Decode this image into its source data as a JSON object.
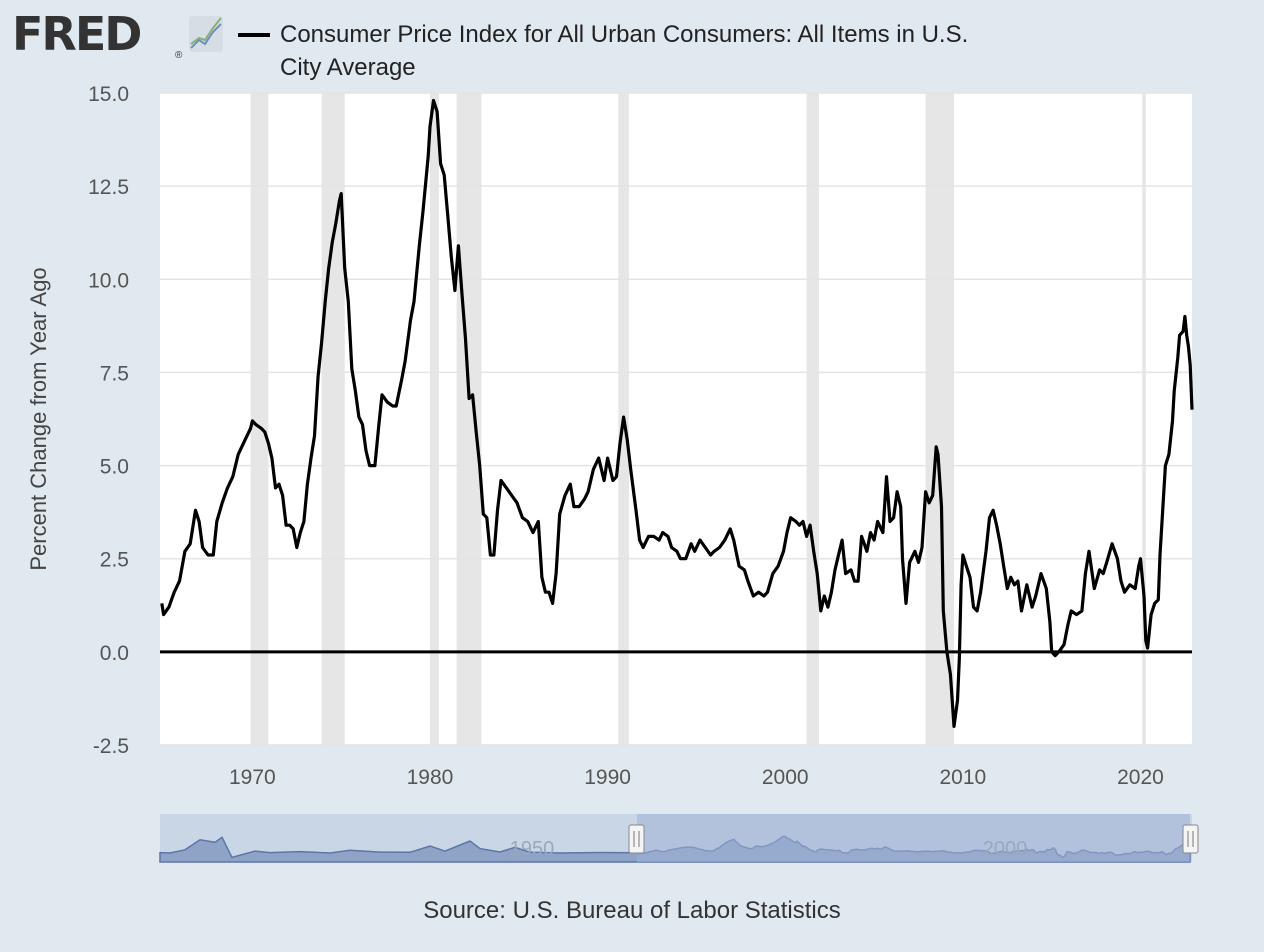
{
  "logo": {
    "text": "FRED",
    "registered": "®"
  },
  "legend": {
    "label": "Consumer Price Index for All Urban Consumers: All Items in U.S. City Average"
  },
  "source": "Source: U.S. Bureau of Labor Statistics",
  "colors": {
    "line": "#000000",
    "recession": "#e6e6e6",
    "navigator": "#8fa3c7",
    "background": "#e1e9f0"
  },
  "navigator": {
    "labels": [
      "1950",
      "2000"
    ]
  },
  "chart_data": {
    "type": "line",
    "title": "",
    "xlabel": "",
    "ylabel": "Percent Change from Year Ago",
    "xlim": [
      1964.8,
      2022.9
    ],
    "ylim": [
      -2.5,
      15.0
    ],
    "yticks": [
      "-2.5",
      "0.0",
      "2.5",
      "5.0",
      "7.5",
      "10.0",
      "12.5",
      "15.0"
    ],
    "xticks": [
      "1970",
      "1980",
      "1990",
      "2000",
      "2010",
      "2020"
    ],
    "grid": true,
    "zero_line": true,
    "recessions": [
      [
        1969.9,
        1970.9
      ],
      [
        1973.9,
        1975.2
      ],
      [
        1980.0,
        1980.5
      ],
      [
        1981.5,
        1982.9
      ],
      [
        1990.6,
        1991.2
      ],
      [
        2001.2,
        2001.9
      ],
      [
        2007.9,
        2009.5
      ],
      [
        2020.1,
        2020.3
      ]
    ],
    "series": [
      {
        "name": "Consumer Price Index for All Urban Consumers: All Items in U.S. City Average",
        "points": [
          [
            1964.9,
            1.3
          ],
          [
            1965.0,
            1.0
          ],
          [
            1965.3,
            1.2
          ],
          [
            1965.6,
            1.6
          ],
          [
            1965.9,
            1.9
          ],
          [
            1966.2,
            2.7
          ],
          [
            1966.5,
            2.9
          ],
          [
            1966.8,
            3.8
          ],
          [
            1967.0,
            3.5
          ],
          [
            1967.2,
            2.8
          ],
          [
            1967.5,
            2.6
          ],
          [
            1967.8,
            2.6
          ],
          [
            1968.0,
            3.5
          ],
          [
            1968.3,
            4.0
          ],
          [
            1968.6,
            4.4
          ],
          [
            1968.9,
            4.7
          ],
          [
            1969.2,
            5.3
          ],
          [
            1969.5,
            5.6
          ],
          [
            1969.9,
            6.0
          ],
          [
            1970.0,
            6.2
          ],
          [
            1970.2,
            6.1
          ],
          [
            1970.5,
            6.0
          ],
          [
            1970.7,
            5.9
          ],
          [
            1970.9,
            5.6
          ],
          [
            1971.1,
            5.2
          ],
          [
            1971.3,
            4.4
          ],
          [
            1971.5,
            4.5
          ],
          [
            1971.7,
            4.2
          ],
          [
            1971.9,
            3.4
          ],
          [
            1972.1,
            3.4
          ],
          [
            1972.3,
            3.3
          ],
          [
            1972.5,
            2.8
          ],
          [
            1972.7,
            3.2
          ],
          [
            1972.9,
            3.5
          ],
          [
            1973.1,
            4.5
          ],
          [
            1973.3,
            5.2
          ],
          [
            1973.5,
            5.8
          ],
          [
            1973.7,
            7.4
          ],
          [
            1973.9,
            8.3
          ],
          [
            1974.1,
            9.4
          ],
          [
            1974.3,
            10.3
          ],
          [
            1974.5,
            11.0
          ],
          [
            1974.7,
            11.5
          ],
          [
            1974.9,
            12.1
          ],
          [
            1975.0,
            12.3
          ],
          [
            1975.2,
            10.3
          ],
          [
            1975.4,
            9.4
          ],
          [
            1975.6,
            7.6
          ],
          [
            1975.8,
            7.0
          ],
          [
            1976.0,
            6.3
          ],
          [
            1976.2,
            6.1
          ],
          [
            1976.4,
            5.4
          ],
          [
            1976.6,
            5.0
          ],
          [
            1976.9,
            5.0
          ],
          [
            1977.1,
            6.0
          ],
          [
            1977.3,
            6.9
          ],
          [
            1977.6,
            6.7
          ],
          [
            1977.9,
            6.6
          ],
          [
            1978.1,
            6.6
          ],
          [
            1978.4,
            7.3
          ],
          [
            1978.6,
            7.8
          ],
          [
            1978.9,
            8.9
          ],
          [
            1979.1,
            9.4
          ],
          [
            1979.4,
            10.9
          ],
          [
            1979.6,
            11.8
          ],
          [
            1979.9,
            13.3
          ],
          [
            1980.0,
            14.1
          ],
          [
            1980.2,
            14.8
          ],
          [
            1980.4,
            14.5
          ],
          [
            1980.6,
            13.1
          ],
          [
            1980.8,
            12.8
          ],
          [
            1981.0,
            11.7
          ],
          [
            1981.2,
            10.6
          ],
          [
            1981.4,
            9.7
          ],
          [
            1981.6,
            10.9
          ],
          [
            1981.8,
            9.6
          ],
          [
            1982.0,
            8.4
          ],
          [
            1982.2,
            6.8
          ],
          [
            1982.4,
            6.9
          ],
          [
            1982.6,
            5.9
          ],
          [
            1982.8,
            5.0
          ],
          [
            1983.0,
            3.7
          ],
          [
            1983.2,
            3.6
          ],
          [
            1983.4,
            2.6
          ],
          [
            1983.6,
            2.6
          ],
          [
            1983.8,
            3.8
          ],
          [
            1984.0,
            4.6
          ],
          [
            1984.3,
            4.4
          ],
          [
            1984.6,
            4.2
          ],
          [
            1984.9,
            4.0
          ],
          [
            1985.2,
            3.6
          ],
          [
            1985.5,
            3.5
          ],
          [
            1985.8,
            3.2
          ],
          [
            1986.1,
            3.5
          ],
          [
            1986.3,
            2.0
          ],
          [
            1986.5,
            1.6
          ],
          [
            1986.7,
            1.6
          ],
          [
            1986.9,
            1.3
          ],
          [
            1987.1,
            2.1
          ],
          [
            1987.3,
            3.7
          ],
          [
            1987.6,
            4.2
          ],
          [
            1987.9,
            4.5
          ],
          [
            1988.1,
            3.9
          ],
          [
            1988.4,
            3.9
          ],
          [
            1988.7,
            4.1
          ],
          [
            1988.9,
            4.3
          ],
          [
            1989.2,
            4.9
          ],
          [
            1989.5,
            5.2
          ],
          [
            1989.8,
            4.6
          ],
          [
            1990.0,
            5.2
          ],
          [
            1990.3,
            4.6
          ],
          [
            1990.5,
            4.7
          ],
          [
            1990.7,
            5.6
          ],
          [
            1990.9,
            6.3
          ],
          [
            1991.1,
            5.7
          ],
          [
            1991.3,
            4.9
          ],
          [
            1991.6,
            3.8
          ],
          [
            1991.8,
            3.0
          ],
          [
            1992.0,
            2.8
          ],
          [
            1992.3,
            3.1
          ],
          [
            1992.6,
            3.1
          ],
          [
            1992.9,
            3.0
          ],
          [
            1993.1,
            3.2
          ],
          [
            1993.4,
            3.1
          ],
          [
            1993.6,
            2.8
          ],
          [
            1993.9,
            2.7
          ],
          [
            1994.1,
            2.5
          ],
          [
            1994.4,
            2.5
          ],
          [
            1994.7,
            2.9
          ],
          [
            1994.9,
            2.7
          ],
          [
            1995.2,
            3.0
          ],
          [
            1995.5,
            2.8
          ],
          [
            1995.8,
            2.6
          ],
          [
            1996.0,
            2.7
          ],
          [
            1996.3,
            2.8
          ],
          [
            1996.6,
            3.0
          ],
          [
            1996.9,
            3.3
          ],
          [
            1997.1,
            3.0
          ],
          [
            1997.4,
            2.3
          ],
          [
            1997.7,
            2.2
          ],
          [
            1997.9,
            1.9
          ],
          [
            1998.2,
            1.5
          ],
          [
            1998.5,
            1.6
          ],
          [
            1998.8,
            1.5
          ],
          [
            1999.0,
            1.6
          ],
          [
            1999.3,
            2.1
          ],
          [
            1999.6,
            2.3
          ],
          [
            1999.9,
            2.7
          ],
          [
            2000.1,
            3.2
          ],
          [
            2000.3,
            3.6
          ],
          [
            2000.6,
            3.5
          ],
          [
            2000.8,
            3.4
          ],
          [
            2001.0,
            3.5
          ],
          [
            2001.2,
            3.1
          ],
          [
            2001.4,
            3.4
          ],
          [
            2001.6,
            2.7
          ],
          [
            2001.8,
            2.1
          ],
          [
            2002.0,
            1.1
          ],
          [
            2002.2,
            1.5
          ],
          [
            2002.4,
            1.2
          ],
          [
            2002.6,
            1.6
          ],
          [
            2002.8,
            2.2
          ],
          [
            2003.0,
            2.6
          ],
          [
            2003.2,
            3.0
          ],
          [
            2003.4,
            2.1
          ],
          [
            2003.7,
            2.2
          ],
          [
            2003.9,
            1.9
          ],
          [
            2004.1,
            1.9
          ],
          [
            2004.3,
            3.1
          ],
          [
            2004.6,
            2.7
          ],
          [
            2004.8,
            3.2
          ],
          [
            2005.0,
            3.0
          ],
          [
            2005.2,
            3.5
          ],
          [
            2005.5,
            3.2
          ],
          [
            2005.7,
            4.7
          ],
          [
            2005.9,
            3.5
          ],
          [
            2006.1,
            3.6
          ],
          [
            2006.3,
            4.3
          ],
          [
            2006.5,
            3.9
          ],
          [
            2006.6,
            2.5
          ],
          [
            2006.8,
            1.3
          ],
          [
            2007.0,
            2.4
          ],
          [
            2007.3,
            2.7
          ],
          [
            2007.5,
            2.4
          ],
          [
            2007.7,
            2.8
          ],
          [
            2007.9,
            4.3
          ],
          [
            2008.1,
            4.0
          ],
          [
            2008.3,
            4.2
          ],
          [
            2008.5,
            5.5
          ],
          [
            2008.6,
            5.3
          ],
          [
            2008.8,
            3.9
          ],
          [
            2008.9,
            1.1
          ],
          [
            2009.1,
            0.0
          ],
          [
            2009.3,
            -0.6
          ],
          [
            2009.4,
            -1.3
          ],
          [
            2009.5,
            -2.0
          ],
          [
            2009.7,
            -1.3
          ],
          [
            2009.8,
            -0.2
          ],
          [
            2009.9,
            1.8
          ],
          [
            2010.0,
            2.6
          ],
          [
            2010.2,
            2.3
          ],
          [
            2010.4,
            2.0
          ],
          [
            2010.6,
            1.2
          ],
          [
            2010.8,
            1.1
          ],
          [
            2011.0,
            1.6
          ],
          [
            2011.3,
            2.7
          ],
          [
            2011.5,
            3.6
          ],
          [
            2011.7,
            3.8
          ],
          [
            2011.9,
            3.4
          ],
          [
            2012.1,
            2.9
          ],
          [
            2012.3,
            2.3
          ],
          [
            2012.5,
            1.7
          ],
          [
            2012.7,
            2.0
          ],
          [
            2012.9,
            1.8
          ],
          [
            2013.1,
            1.9
          ],
          [
            2013.3,
            1.1
          ],
          [
            2013.6,
            1.8
          ],
          [
            2013.9,
            1.2
          ],
          [
            2014.1,
            1.5
          ],
          [
            2014.4,
            2.1
          ],
          [
            2014.7,
            1.7
          ],
          [
            2014.9,
            0.8
          ],
          [
            2015.0,
            0.0
          ],
          [
            2015.2,
            -0.1
          ],
          [
            2015.4,
            0.0
          ],
          [
            2015.7,
            0.2
          ],
          [
            2015.9,
            0.7
          ],
          [
            2016.1,
            1.1
          ],
          [
            2016.4,
            1.0
          ],
          [
            2016.7,
            1.1
          ],
          [
            2016.9,
            2.1
          ],
          [
            2017.1,
            2.7
          ],
          [
            2017.4,
            1.7
          ],
          [
            2017.7,
            2.2
          ],
          [
            2017.9,
            2.1
          ],
          [
            2018.1,
            2.4
          ],
          [
            2018.4,
            2.9
          ],
          [
            2018.7,
            2.5
          ],
          [
            2018.9,
            1.9
          ],
          [
            2019.1,
            1.6
          ],
          [
            2019.4,
            1.8
          ],
          [
            2019.7,
            1.7
          ],
          [
            2019.9,
            2.3
          ],
          [
            2020.0,
            2.5
          ],
          [
            2020.2,
            1.5
          ],
          [
            2020.3,
            0.3
          ],
          [
            2020.4,
            0.1
          ],
          [
            2020.6,
            1.0
          ],
          [
            2020.8,
            1.3
          ],
          [
            2021.0,
            1.4
          ],
          [
            2021.1,
            2.6
          ],
          [
            2021.3,
            4.2
          ],
          [
            2021.4,
            5.0
          ],
          [
            2021.6,
            5.3
          ],
          [
            2021.8,
            6.2
          ],
          [
            2021.9,
            7.0
          ],
          [
            2022.1,
            7.9
          ],
          [
            2022.2,
            8.5
          ],
          [
            2022.4,
            8.6
          ],
          [
            2022.5,
            9.0
          ],
          [
            2022.6,
            8.5
          ],
          [
            2022.7,
            8.2
          ],
          [
            2022.8,
            7.7
          ],
          [
            2022.9,
            6.5
          ]
        ]
      }
    ]
  }
}
